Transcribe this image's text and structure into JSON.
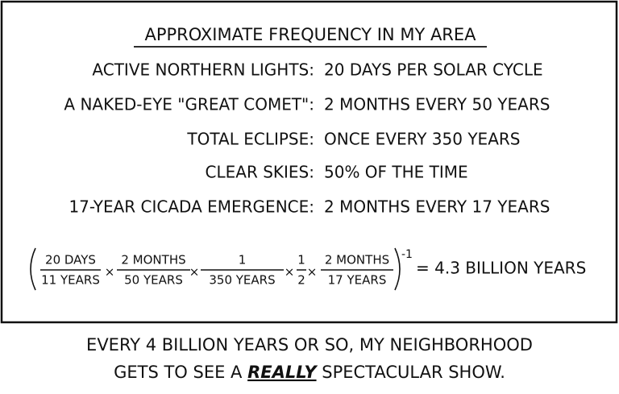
{
  "panel": {
    "title": "APPROXIMATE FREQUENCY IN MY AREA",
    "rows": [
      {
        "label": "ACTIVE NORTHERN LIGHTS:",
        "value": "20 DAYS PER SOLAR CYCLE"
      },
      {
        "label": "A NAKED-EYE \"GREAT COMET\":",
        "value": "2 MONTHS EVERY 50 YEARS"
      },
      {
        "label": "TOTAL ECLIPSE:",
        "value": "ONCE EVERY 350 YEARS"
      },
      {
        "label": "CLEAR SKIES:",
        "value": "50% OF THE TIME"
      },
      {
        "label": "17-YEAR CICADA EMERGENCE:",
        "value": "2 MONTHS EVERY 17 YEARS"
      }
    ],
    "formula": {
      "fractions": [
        {
          "numerator": "20 DAYS",
          "denominator": "11 YEARS"
        },
        {
          "numerator": "2 MONTHS",
          "denominator": "50 YEARS"
        },
        {
          "numerator": "1",
          "denominator": "350 YEARS"
        },
        {
          "numerator": "1",
          "denominator": "2"
        },
        {
          "numerator": "2 MONTHS",
          "denominator": "17 YEARS"
        }
      ],
      "operator": "×",
      "exponent": "-1",
      "result": "= 4.3 BILLION YEARS"
    }
  },
  "caption": {
    "line1": "EVERY 4 BILLION YEARS OR SO, MY NEIGHBORHOOD",
    "line2_before": "GETS TO SEE A ",
    "line2_emphasis": "REALLY",
    "line2_after": " SPECTACULAR SHOW."
  }
}
